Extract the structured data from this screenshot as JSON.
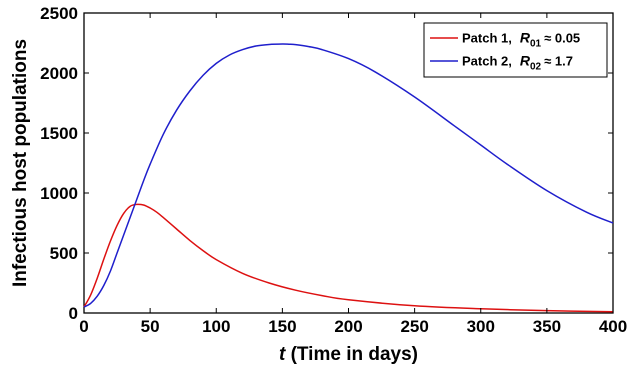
{
  "chart_data": {
    "type": "line",
    "xlabel_italic": "t",
    "xlabel_rest": " (Time in days)",
    "ylabel": "Infectious host populations",
    "xlim": [
      0,
      400
    ],
    "ylim": [
      0,
      2500
    ],
    "xticks": [
      0,
      50,
      100,
      150,
      200,
      250,
      300,
      350,
      400
    ],
    "yticks": [
      0,
      500,
      1000,
      1500,
      2000,
      2500
    ],
    "grid": false,
    "legend_position": "top-right",
    "series": [
      {
        "name": "Patch 1,",
        "legend_symbol": "R",
        "legend_subscript": "01",
        "legend_value": "≈ 0.05",
        "color": "#dd1111",
        "x": [
          0,
          5,
          10,
          15,
          20,
          25,
          30,
          35,
          40,
          45,
          50,
          55,
          60,
          70,
          80,
          90,
          100,
          120,
          140,
          160,
          180,
          200,
          250,
          300,
          350,
          400
        ],
        "y": [
          50,
          150,
          290,
          450,
          600,
          730,
          830,
          890,
          905,
          900,
          875,
          840,
          795,
          700,
          605,
          520,
          445,
          330,
          250,
          190,
          145,
          110,
          60,
          35,
          20,
          10
        ]
      },
      {
        "name": "Patch 2,",
        "legend_symbol": "R",
        "legend_subscript": "02",
        "legend_value": "≈ 1.7",
        "color": "#1f1fcc",
        "x": [
          0,
          5,
          10,
          15,
          20,
          25,
          30,
          35,
          40,
          45,
          50,
          60,
          70,
          80,
          90,
          100,
          110,
          120,
          130,
          140,
          150,
          155,
          160,
          170,
          180,
          200,
          220,
          250,
          280,
          300,
          320,
          350,
          380,
          400
        ],
        "y": [
          50,
          80,
          140,
          230,
          350,
          500,
          650,
          800,
          950,
          1100,
          1240,
          1490,
          1690,
          1850,
          1980,
          2080,
          2150,
          2195,
          2225,
          2238,
          2242,
          2240,
          2236,
          2220,
          2195,
          2120,
          2010,
          1800,
          1560,
          1400,
          1240,
          1020,
          840,
          750
        ]
      }
    ]
  }
}
